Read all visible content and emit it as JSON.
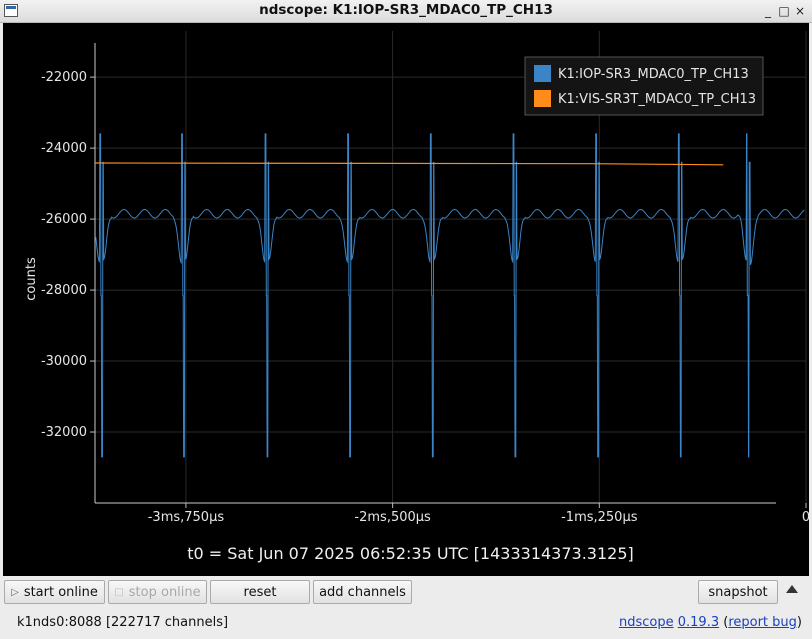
{
  "window": {
    "title": "ndscope: K1:IOP-SR3_MDAC0_TP_CH13",
    "buttons": {
      "minimize": "_",
      "maximize": "□",
      "close": "×"
    }
  },
  "plot": {
    "background": "#000000",
    "t0_label": "t0 = Sat Jun 07 2025 06:52:35 UTC [1433314373.3125]"
  },
  "chart_data": {
    "type": "line",
    "ylabel": "counts",
    "xlabel": "",
    "ylim": [
      -34000,
      -20700
    ],
    "xlim": [
      -4.3,
      0.0
    ],
    "x_unit": "ms",
    "yticks": [
      -22000,
      -24000,
      -26000,
      -28000,
      -30000,
      -32000
    ],
    "ytick_labels": [
      "-22000",
      "-24000",
      "-26000",
      "-28000",
      "-30000",
      "-32000"
    ],
    "xticks": [
      -3.75,
      -2.5,
      -1.25,
      0
    ],
    "xtick_labels": [
      "-3ms,750µs",
      "-2ms,500µs",
      "-1ms,250µs",
      "0"
    ],
    "grid": true,
    "legend_placement": "top-right",
    "series": [
      {
        "name": "K1:IOP-SR3_MDAC0_TP_CH13",
        "color": "#3b84c6",
        "spike_times": [
          -4.26,
          -3.765,
          -3.26,
          -2.76,
          -2.26,
          -1.76,
          -1.26,
          -0.76,
          -0.35
        ],
        "baseline": -25850,
        "spike_max": -23600,
        "spike_min": -32700,
        "x_end": -0.01
      },
      {
        "name": "K1:VIS-SR3T_MDAC0_TP_CH13",
        "color": "#ff8c1a",
        "x": [
          -4.3,
          -1.3,
          -0.5
        ],
        "y": [
          -24420,
          -24440,
          -24470
        ]
      }
    ]
  },
  "toolbar": {
    "start_online": "start online",
    "stop_online": "stop online",
    "reset": "reset",
    "add_channels": "add channels",
    "snapshot": "snapshot"
  },
  "status": {
    "server": "k1nds0:8088",
    "channels": "[222717 channels]",
    "app_name": "ndscope",
    "version": "0.19.3",
    "report_bug": "report bug"
  }
}
